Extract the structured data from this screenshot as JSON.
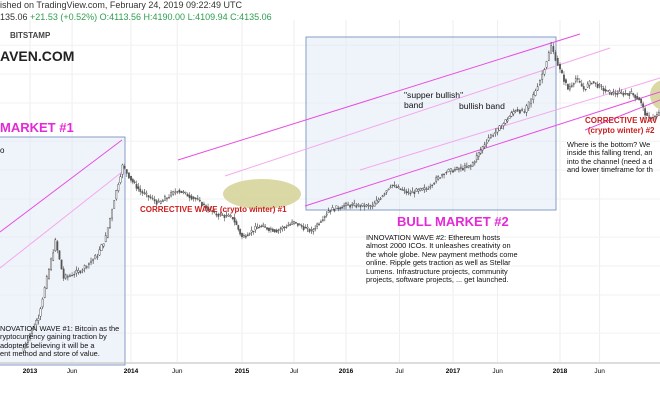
{
  "header": {
    "published": "ished on TradingView.com, February 24, 2019 09:22:49 UTC",
    "ohlc": {
      "prefix": "135.06",
      "change": "+21.53 (+0.52%)",
      "open": "O:4113.56",
      "high": "H:4190.00",
      "low": "L:4109.94",
      "close": "C:4135.06"
    },
    "exchange": "BITSTAMP",
    "site": "AVEN.COM"
  },
  "annotations": {
    "bull_market_1": "MARKET #1",
    "bull_market_2": "BULL MARKET #2",
    "corrective_wave_1": "CORRECTIVE WAVE (crypto winter) #1",
    "corrective_wave_2_line1": "CORRECTIVE WAV",
    "corrective_wave_2_line2": "(crypto winter) #2",
    "super_bullish_band": "\"supper bullish\"\nband",
    "bullish_band": "bullish band",
    "innovation_wave_1": "NOVATION WAVE #1: Bitcoin as the\nryptocurrency gaining traction by\nadopters believing it will be a\nent method and store of value.",
    "innovation_wave_2": "INNOVATION WAVE #2: Ethereum hosts\nalmost 2000 ICOs. It unleashes creativity on\nthe whole globe. New payment methods come\nonline. Ripple gets traction as well as Stellar\nLumens. Infrastructure projects, community\nprojects, software projects, ... get launched.",
    "bottom_note": "Where is the bottom? We\ninside this falling trend, an\ninto the channel (need a d\nand lower timeframe for th",
    "left_cut_text": "o"
  },
  "chart_data": {
    "type": "candlestick",
    "title": "",
    "xlabel": "",
    "ylabel": "",
    "x_tick_labels": [
      "2013",
      "Jun",
      "2014",
      "Jun",
      "2015",
      "Jul",
      "2016",
      "Jul",
      "2017",
      "Jun",
      "2018",
      "Jun"
    ],
    "x_tick_dates": [
      "2013-01",
      "2013-06",
      "2014-01",
      "2014-06",
      "2015-01",
      "2015-07",
      "2016-01",
      "2016-07",
      "2017-01",
      "2017-06",
      "2018-01",
      "2018-06"
    ],
    "y_scale": "log",
    "y_range": [
      10,
      25000
    ],
    "grid": true,
    "series": [
      {
        "values": [
          {
            "date": "2012-12",
            "price": 13
          },
          {
            "date": "2013-02",
            "price": 30
          },
          {
            "date": "2013-04",
            "price": 180
          },
          {
            "date": "2013-05",
            "price": 75
          },
          {
            "date": "2013-07",
            "price": 90
          },
          {
            "date": "2013-09",
            "price": 130
          },
          {
            "date": "2013-10",
            "price": 200
          },
          {
            "date": "2013-11",
            "price": 500
          },
          {
            "date": "2013-12",
            "price": 1100
          },
          {
            "date": "2014-01",
            "price": 800
          },
          {
            "date": "2014-02",
            "price": 600
          },
          {
            "date": "2014-04",
            "price": 450
          },
          {
            "date": "2014-06",
            "price": 620
          },
          {
            "date": "2014-08",
            "price": 500
          },
          {
            "date": "2014-10",
            "price": 350
          },
          {
            "date": "2014-12",
            "price": 320
          },
          {
            "date": "2015-01",
            "price": 200
          },
          {
            "date": "2015-03",
            "price": 260
          },
          {
            "date": "2015-05",
            "price": 235
          },
          {
            "date": "2015-07",
            "price": 285
          },
          {
            "date": "2015-09",
            "price": 230
          },
          {
            "date": "2015-11",
            "price": 380
          },
          {
            "date": "2016-01",
            "price": 430
          },
          {
            "date": "2016-04",
            "price": 420
          },
          {
            "date": "2016-06",
            "price": 700
          },
          {
            "date": "2016-08",
            "price": 575
          },
          {
            "date": "2016-10",
            "price": 640
          },
          {
            "date": "2016-12",
            "price": 950
          },
          {
            "date": "2017-01",
            "price": 1000
          },
          {
            "date": "2017-03",
            "price": 1100
          },
          {
            "date": "2017-05",
            "price": 2200
          },
          {
            "date": "2017-06",
            "price": 2600
          },
          {
            "date": "2017-08",
            "price": 4300
          },
          {
            "date": "2017-09",
            "price": 4000
          },
          {
            "date": "2017-10",
            "price": 6000
          },
          {
            "date": "2017-11",
            "price": 10000
          },
          {
            "date": "2017-12",
            "price": 19500
          },
          {
            "date": "2018-01",
            "price": 11000
          },
          {
            "date": "2018-02",
            "price": 7000
          },
          {
            "date": "2018-03",
            "price": 9000
          },
          {
            "date": "2018-04",
            "price": 7000
          },
          {
            "date": "2018-05",
            "price": 8400
          },
          {
            "date": "2018-07",
            "price": 6500
          },
          {
            "date": "2018-08",
            "price": 6300
          },
          {
            "date": "2018-10",
            "price": 6300
          },
          {
            "date": "2018-11",
            "price": 5500
          },
          {
            "date": "2018-12",
            "price": 3500
          },
          {
            "date": "2019-01",
            "price": 3600
          },
          {
            "date": "2019-02",
            "price": 4135
          }
        ]
      }
    ],
    "colors": {
      "channel_lines": "#e84ee0",
      "channel_lines_light": "#f4a8ee",
      "box_fill": "#dfe7f5",
      "box_stroke": "#6b86b8",
      "ellipse_fill": "#d4d296",
      "candle_up": "#333333",
      "candle_down": "#555555",
      "annotation_red": "#cc1f1f",
      "annotation_magenta": "#e42ad6"
    }
  }
}
